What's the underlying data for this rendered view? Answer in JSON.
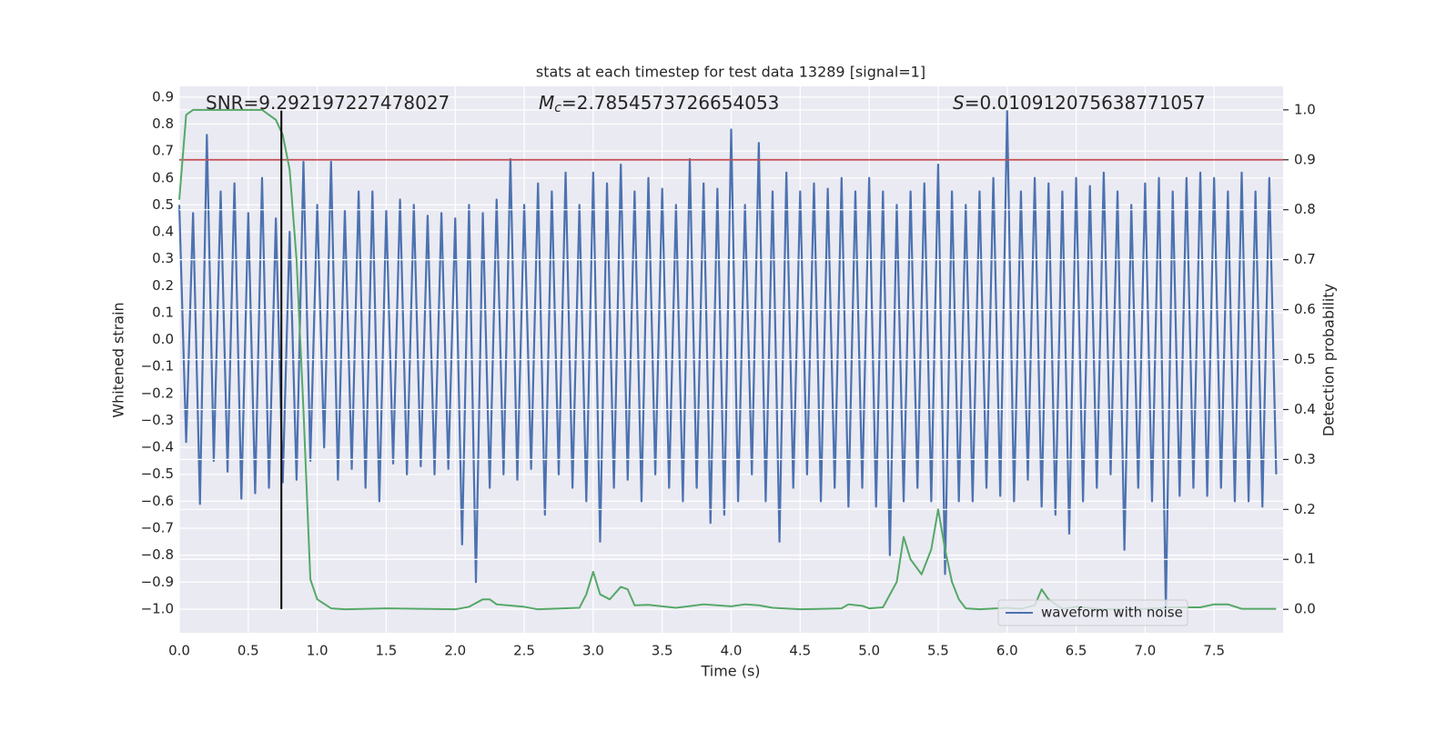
{
  "chart_data": {
    "type": "line",
    "title": "stats at each timestep for test data 13289 [signal=1]",
    "x_label": "Time (s)",
    "y_label": "Whitened strain",
    "y2_label": "Detection probability",
    "annotations": [
      {
        "text": "SNR=9.292197227478027"
      },
      {
        "symbol": "M",
        "subscript": "c",
        "text": "=2.7854573726654053"
      },
      {
        "symbol": "S",
        "text": "=0.010912075638771057"
      }
    ],
    "xlim": [
      0,
      8.0
    ],
    "ylim": [
      -1.088,
      0.94
    ],
    "y2lim": [
      -0.047,
      1.047
    ],
    "xticks": [
      {
        "value": 0,
        "label": "0.0"
      },
      0.5,
      {
        "value": 1,
        "label": "1.0"
      },
      1.5,
      {
        "value": 2,
        "label": "2.0"
      },
      2.5,
      {
        "value": 3,
        "label": "3.0"
      },
      3.5,
      {
        "value": 4,
        "label": "4.0"
      },
      4.5,
      {
        "value": 5,
        "label": "5.0"
      },
      5.5,
      {
        "value": 6,
        "label": "6.0"
      },
      6.5,
      {
        "value": 7,
        "label": "7.0"
      },
      7.5
    ],
    "yticks": [
      {
        "value": -1,
        "label": "−1.0"
      },
      {
        "value": -0.9,
        "label": "−0.9"
      },
      {
        "value": -0.8,
        "label": "−0.8"
      },
      {
        "value": -0.7,
        "label": "−0.7"
      },
      {
        "value": -0.6,
        "label": "−0.6"
      },
      {
        "value": -0.5,
        "label": "−0.5"
      },
      {
        "value": -0.4,
        "label": "−0.4"
      },
      {
        "value": -0.3,
        "label": "−0.3"
      },
      {
        "value": -0.2,
        "label": "−0.2"
      },
      {
        "value": -0.1,
        "label": "−0.1"
      },
      {
        "value": 0,
        "label": "0.0"
      },
      0.1,
      0.2,
      0.3,
      0.4,
      0.5,
      0.6,
      0.7,
      0.8,
      0.9
    ],
    "y2ticks": [
      {
        "value": 0,
        "label": "0.0"
      },
      0.1,
      0.2,
      0.3,
      0.4,
      0.5,
      0.6,
      0.7,
      0.8,
      0.9,
      {
        "value": 1,
        "label": "1.0"
      }
    ],
    "grid": true,
    "legend": "lower right",
    "threshold": {
      "value": 0.9,
      "axis": "y2",
      "color": "#c44e52"
    },
    "vline": {
      "x": 0.74,
      "ymin": -1.0,
      "ymax": 0.85,
      "color": "#000000"
    },
    "series": [
      {
        "name": "waveform with noise",
        "color": "#4c72b0",
        "x": [
          0,
          0.05,
          0.1,
          0.15,
          0.2,
          0.25,
          0.3,
          0.35,
          0.4,
          0.45,
          0.5,
          0.55,
          0.6,
          0.65,
          0.7,
          0.75,
          0.8,
          0.85,
          0.9,
          0.95,
          1,
          1.05,
          1.1,
          1.15,
          1.2,
          1.25,
          1.3,
          1.35,
          1.4,
          1.45,
          1.5,
          1.55,
          1.6,
          1.65,
          1.7,
          1.75,
          1.8,
          1.85,
          1.9,
          1.95,
          2,
          2.05,
          2.1,
          2.15,
          2.2,
          2.25,
          2.3,
          2.35,
          2.4,
          2.45,
          2.5,
          2.55,
          2.6,
          2.65,
          2.7,
          2.75,
          2.8,
          2.85,
          2.9,
          2.95,
          3,
          3.05,
          3.1,
          3.15,
          3.2,
          3.25,
          3.3,
          3.35,
          3.4,
          3.45,
          3.5,
          3.55,
          3.6,
          3.65,
          3.7,
          3.75,
          3.8,
          3.85,
          3.9,
          3.95,
          4,
          4.05,
          4.1,
          4.15,
          4.2,
          4.25,
          4.3,
          4.35,
          4.4,
          4.45,
          4.5,
          4.55,
          4.6,
          4.65,
          4.7,
          4.75,
          4.8,
          4.85,
          4.9,
          4.95,
          5,
          5.05,
          5.1,
          5.15,
          5.2,
          5.25,
          5.3,
          5.35,
          5.4,
          5.45,
          5.5,
          5.55,
          5.6,
          5.65,
          5.7,
          5.75,
          5.8,
          5.85,
          5.9,
          5.95,
          6,
          6.05,
          6.1,
          6.15,
          6.2,
          6.25,
          6.3,
          6.35,
          6.4,
          6.45,
          6.5,
          6.55,
          6.6,
          6.65,
          6.7,
          6.75,
          6.8,
          6.85,
          6.9,
          6.95,
          7,
          7.05,
          7.1,
          7.15,
          7.2,
          7.25,
          7.3,
          7.35,
          7.4,
          7.45,
          7.5,
          7.55,
          7.6,
          7.65,
          7.7,
          7.75,
          7.8,
          7.85,
          7.9,
          7.95
        ],
        "values": [
          0.5,
          -0.38,
          0.47,
          -0.61,
          0.76,
          -0.45,
          0.55,
          -0.49,
          0.58,
          -0.59,
          0.47,
          -0.57,
          0.6,
          -0.55,
          0.45,
          -0.53,
          0.4,
          -0.52,
          0.66,
          -0.45,
          0.5,
          -0.4,
          0.66,
          -0.52,
          0.48,
          -0.48,
          0.55,
          -0.55,
          0.55,
          -0.6,
          0.48,
          -0.46,
          0.52,
          -0.5,
          0.5,
          -0.47,
          0.46,
          -0.5,
          0.47,
          -0.48,
          0.45,
          -0.76,
          0.5,
          -0.9,
          0.47,
          -0.55,
          0.52,
          -0.5,
          0.67,
          -0.52,
          0.5,
          -0.48,
          0.58,
          -0.65,
          0.55,
          -0.5,
          0.62,
          -0.55,
          0.5,
          -0.6,
          0.62,
          -0.75,
          0.58,
          -0.55,
          0.65,
          -0.52,
          0.55,
          -0.6,
          0.6,
          -0.5,
          0.56,
          -0.55,
          0.5,
          -0.6,
          0.67,
          -0.55,
          0.58,
          -0.68,
          0.56,
          -0.65,
          0.78,
          -0.6,
          0.5,
          -0.5,
          0.73,
          -0.6,
          0.55,
          -0.75,
          0.62,
          -0.55,
          0.55,
          -0.5,
          0.58,
          -0.6,
          0.56,
          -0.55,
          0.6,
          -0.62,
          0.55,
          -0.55,
          0.6,
          -0.62,
          0.55,
          -0.8,
          0.5,
          -0.6,
          0.55,
          -0.55,
          0.58,
          -0.6,
          0.65,
          -0.87,
          0.55,
          -0.6,
          0.5,
          -0.6,
          0.55,
          -0.55,
          0.6,
          -0.58,
          0.85,
          -0.6,
          0.55,
          -0.52,
          0.6,
          -0.62,
          0.58,
          -0.65,
          0.55,
          -0.72,
          0.6,
          -0.6,
          0.57,
          -0.55,
          0.62,
          -0.5,
          0.55,
          -0.78,
          0.5,
          -0.55,
          0.58,
          -0.6,
          0.6,
          -1.0,
          0.55,
          -0.58,
          0.6,
          -0.55,
          0.62,
          -0.58,
          0.6,
          -0.55,
          0.55,
          -0.6,
          0.62,
          -0.6,
          0.55,
          -0.62,
          0.6,
          -0.5
        ]
      },
      {
        "color": "#55a868",
        "axis": "y2",
        "x": [
          0,
          0.05,
          0.1,
          0.2,
          0.3,
          0.4,
          0.5,
          0.6,
          0.65,
          0.7,
          0.75,
          0.8,
          0.85,
          0.9,
          0.95,
          1,
          1.1,
          1.2,
          1.5,
          2,
          2.1,
          2.2,
          2.25,
          2.3,
          2.5,
          2.6,
          2.9,
          2.95,
          3,
          3.05,
          3.12,
          3.2,
          3.25,
          3.3,
          3.4,
          3.6,
          3.8,
          4,
          4.1,
          4.2,
          4.3,
          4.5,
          4.8,
          4.85,
          4.95,
          5,
          5.1,
          5.2,
          5.25,
          5.3,
          5.38,
          5.45,
          5.5,
          5.55,
          5.6,
          5.65,
          5.7,
          5.8,
          6,
          6.1,
          6.2,
          6.25,
          6.3,
          6.4,
          6.5,
          6.7,
          7,
          7.1,
          7.2,
          7.4,
          7.5,
          7.6,
          7.7,
          7.9,
          7.95
        ],
        "values": [
          0.82,
          0.99,
          1.0,
          1.0,
          1.0,
          1.0,
          1.0,
          1.0,
          0.99,
          0.98,
          0.95,
          0.88,
          0.7,
          0.4,
          0.06,
          0.02,
          0.002,
          0,
          0.002,
          0,
          0.005,
          0.02,
          0.02,
          0.01,
          0.005,
          0,
          0.003,
          0.03,
          0.075,
          0.03,
          0.02,
          0.045,
          0.04,
          0.008,
          0.009,
          0.003,
          0.01,
          0.006,
          0.01,
          0.008,
          0.003,
          0,
          0.002,
          0.01,
          0.007,
          0.002,
          0.004,
          0.055,
          0.145,
          0.1,
          0.07,
          0.12,
          0.2,
          0.12,
          0.055,
          0.02,
          0.002,
          0,
          0.003,
          0.001,
          0.008,
          0.04,
          0.02,
          0.001,
          0.005,
          0,
          0.001,
          0.002,
          0.004,
          0.004,
          0.01,
          0.01,
          0.001,
          0.001,
          0.001
        ]
      }
    ]
  }
}
